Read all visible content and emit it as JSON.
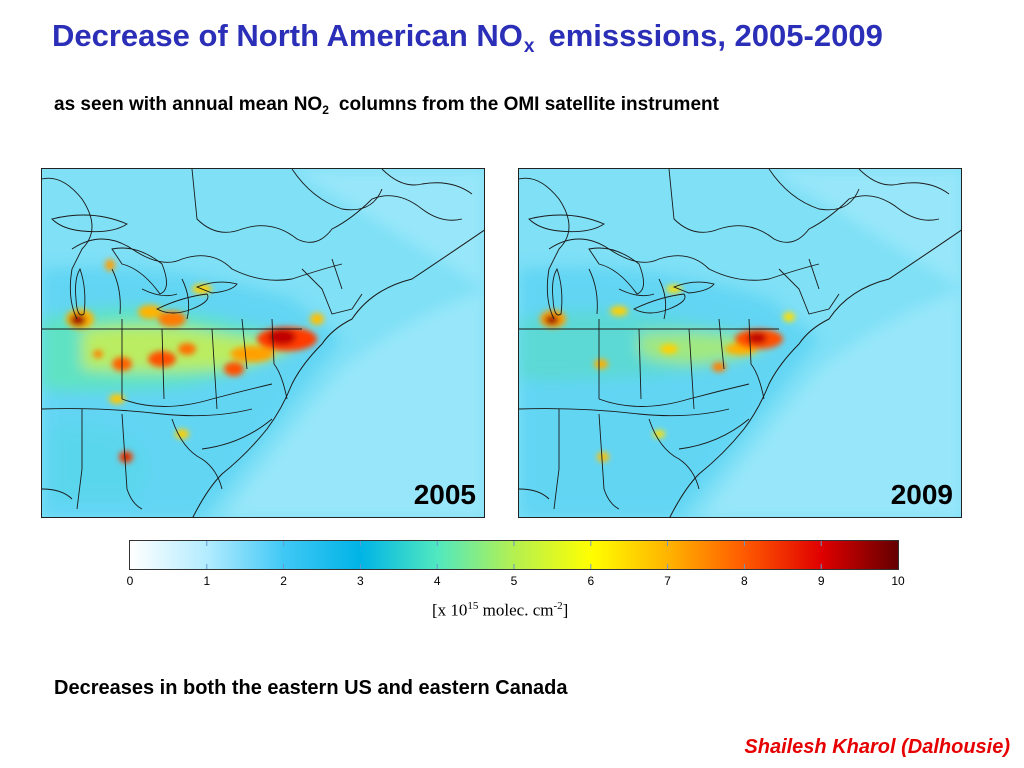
{
  "title": {
    "main": "Decrease of North American NO",
    "sub": "x",
    "tail": "emisssions, 2005-2009"
  },
  "subtitle": {
    "main": "as seen with annual mean NO",
    "sub": "2",
    "tail": "columns from the OMI satellite instrument"
  },
  "maps": [
    {
      "year": "2005"
    },
    {
      "year": "2009"
    }
  ],
  "colorbar": {
    "ticks": [
      "0",
      "1",
      "2",
      "3",
      "4",
      "5",
      "6",
      "7",
      "8",
      "9",
      "10"
    ],
    "units_pre": "[x 10",
    "units_exp": "15",
    "units_mid": " molec. cm",
    "units_exp2": "-2",
    "units_post": "]",
    "colors": [
      "#ffffff",
      "#b3ecff",
      "#40c8f5",
      "#00b4e6",
      "#50e8c0",
      "#b4f050",
      "#ffff00",
      "#ffb400",
      "#ff5a00",
      "#e00000",
      "#650000"
    ]
  },
  "conclusion": "Decreases in both the eastern US and eastern Canada",
  "credit": "Shailesh Kharol (Dalhousie)"
}
